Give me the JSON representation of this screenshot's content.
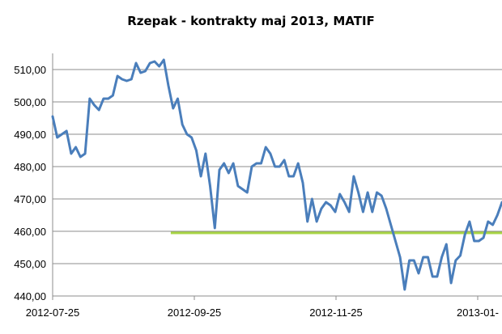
{
  "chart_data": {
    "type": "line",
    "title": "Rzepak - kontrakty maj 2013, MATIF",
    "xlabel": "",
    "ylabel": "",
    "ylim": [
      440,
      515
    ],
    "y_ticks": [
      "440,00",
      "450,00",
      "460,00",
      "470,00",
      "480,00",
      "490,00",
      "500,00",
      "510,00"
    ],
    "x_ticks": [
      "2012-07-25",
      "2012-09-25",
      "2012-11-25",
      "2013-01-"
    ],
    "x_range": [
      "2012-07-25",
      "2013-02-04"
    ],
    "grid": true,
    "series": [
      {
        "color": "#4a7ebb",
        "x": [
          "2012-07-25",
          "2012-07-27",
          "2012-07-29",
          "2012-07-31",
          "2012-08-02",
          "2012-08-04",
          "2012-08-06",
          "2012-08-08",
          "2012-08-10",
          "2012-08-12",
          "2012-08-14",
          "2012-08-16",
          "2012-08-18",
          "2012-08-20",
          "2012-08-22",
          "2012-08-24",
          "2012-08-26",
          "2012-08-28",
          "2012-08-30",
          "2012-09-01",
          "2012-09-03",
          "2012-09-05",
          "2012-09-07",
          "2012-09-09",
          "2012-09-11",
          "2012-09-13",
          "2012-09-15",
          "2012-09-17",
          "2012-09-19",
          "2012-09-21",
          "2012-09-23",
          "2012-09-25",
          "2012-09-27",
          "2012-09-29",
          "2012-10-01",
          "2012-10-03",
          "2012-10-05",
          "2012-10-07",
          "2012-10-09",
          "2012-10-11",
          "2012-10-13",
          "2012-10-15",
          "2012-10-17",
          "2012-10-19",
          "2012-10-21",
          "2012-10-23",
          "2012-10-25",
          "2012-10-27",
          "2012-10-29",
          "2012-10-31",
          "2012-11-02",
          "2012-11-04",
          "2012-11-06",
          "2012-11-08",
          "2012-11-10",
          "2012-11-12",
          "2012-11-14",
          "2012-11-16",
          "2012-11-18",
          "2012-11-20",
          "2012-11-22",
          "2012-11-24",
          "2012-11-26",
          "2012-11-28",
          "2012-11-30",
          "2012-12-02",
          "2012-12-04",
          "2012-12-06",
          "2012-12-08",
          "2012-12-10",
          "2012-12-12",
          "2012-12-14",
          "2012-12-16",
          "2012-12-18",
          "2012-12-20",
          "2012-12-22",
          "2012-12-24",
          "2012-12-26",
          "2012-12-28",
          "2012-12-30",
          "2013-01-01",
          "2013-01-03",
          "2013-01-05",
          "2013-01-07",
          "2013-01-09",
          "2013-01-11",
          "2013-01-13",
          "2013-01-15",
          "2013-01-17",
          "2013-01-19",
          "2013-01-21",
          "2013-01-23",
          "2013-01-25",
          "2013-01-27",
          "2013-01-29",
          "2013-01-31",
          "2013-02-02",
          "2013-02-04"
        ],
        "values": [
          495.5,
          489,
          490,
          491,
          484,
          486,
          483,
          484,
          501,
          499,
          497.5,
          501,
          501,
          502,
          508,
          507,
          506.5,
          507,
          512,
          509,
          509.5,
          512,
          512.5,
          511,
          513,
          505,
          498,
          501,
          493,
          490,
          489,
          485,
          477,
          484,
          474,
          461,
          479,
          481,
          478,
          481,
          474,
          473,
          472,
          480,
          481,
          481,
          486,
          484,
          480,
          480,
          482,
          477,
          477,
          481,
          475,
          463,
          470,
          463,
          467,
          469,
          468,
          466,
          471.5,
          469,
          466,
          477,
          472,
          466,
          472,
          466,
          472,
          471,
          467,
          462,
          457,
          452,
          442,
          451,
          451,
          447,
          452,
          452,
          446,
          446,
          452,
          456,
          444,
          451,
          452.5,
          459,
          463,
          457,
          457,
          458,
          463,
          462,
          465,
          469
        ]
      }
    ],
    "reference_line": {
      "value": 459.5,
      "from": "2012-09-14",
      "to": "2013-02-04",
      "color": "#a8d444"
    }
  }
}
